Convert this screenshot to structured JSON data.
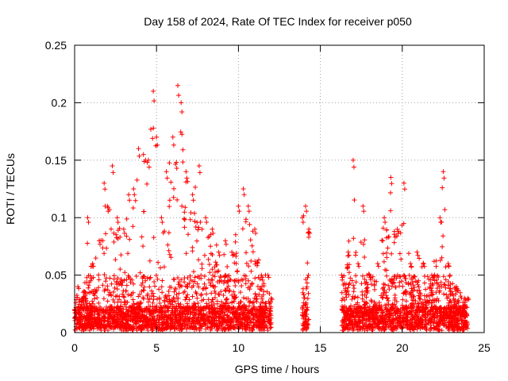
{
  "chart_data": {
    "type": "scatter",
    "title": "Day 158 of 2024, Rate Of TEC Index for receiver p050",
    "xlabel": "GPS time / hours",
    "ylabel": "ROTI / TECUs",
    "xlim": [
      0,
      25
    ],
    "ylim": [
      0,
      0.25
    ],
    "xticks": [
      0,
      5,
      10,
      15,
      20,
      25
    ],
    "xtick_labels": [
      "0",
      "5",
      "10",
      "15",
      "20",
      "25"
    ],
    "yticks": [
      0,
      0.05,
      0.1,
      0.15,
      0.2,
      0.25
    ],
    "ytick_labels": [
      "0",
      "0.05",
      "0.1",
      "0.15",
      "0.2",
      "0.25"
    ],
    "grid": true,
    "marker": "plus",
    "series_color": "#ff0000",
    "segments": [
      {
        "x_start": 0.0,
        "x_end": 12.0
      },
      {
        "x_start": 13.9,
        "x_end": 14.3
      },
      {
        "x_start": 16.3,
        "x_end": 24.0
      }
    ],
    "envelope": [
      [
        0.0,
        0.02
      ],
      [
        0.2,
        0.04
      ],
      [
        0.5,
        0.03
      ],
      [
        0.8,
        0.1
      ],
      [
        1.1,
        0.06
      ],
      [
        1.5,
        0.08
      ],
      [
        1.8,
        0.13
      ],
      [
        2.0,
        0.11
      ],
      [
        2.3,
        0.145
      ],
      [
        2.6,
        0.1
      ],
      [
        3.0,
        0.09
      ],
      [
        3.3,
        0.12
      ],
      [
        3.6,
        0.125
      ],
      [
        3.9,
        0.16
      ],
      [
        4.2,
        0.155
      ],
      [
        4.5,
        0.15
      ],
      [
        4.8,
        0.21
      ],
      [
        5.0,
        0.17
      ],
      [
        5.3,
        0.1
      ],
      [
        5.6,
        0.14
      ],
      [
        6.0,
        0.17
      ],
      [
        6.3,
        0.215
      ],
      [
        6.5,
        0.2
      ],
      [
        6.8,
        0.14
      ],
      [
        7.2,
        0.12
      ],
      [
        7.6,
        0.145
      ],
      [
        8.0,
        0.1
      ],
      [
        8.4,
        0.09
      ],
      [
        8.8,
        0.07
      ],
      [
        9.2,
        0.08
      ],
      [
        9.6,
        0.07
      ],
      [
        10.0,
        0.11
      ],
      [
        10.3,
        0.125
      ],
      [
        10.6,
        0.11
      ],
      [
        11.0,
        0.09
      ],
      [
        11.4,
        0.05
      ],
      [
        11.8,
        0.05
      ],
      [
        12.0,
        0.03
      ],
      [
        13.9,
        0.1
      ],
      [
        14.1,
        0.11
      ],
      [
        14.3,
        0.09
      ],
      [
        16.3,
        0.05
      ],
      [
        16.7,
        0.07
      ],
      [
        17.0,
        0.15
      ],
      [
        17.3,
        0.06
      ],
      [
        17.6,
        0.11
      ],
      [
        18.0,
        0.05
      ],
      [
        18.5,
        0.06
      ],
      [
        18.9,
        0.1
      ],
      [
        19.3,
        0.135
      ],
      [
        19.7,
        0.09
      ],
      [
        20.1,
        0.13
      ],
      [
        20.5,
        0.06
      ],
      [
        20.9,
        0.07
      ],
      [
        21.3,
        0.06
      ],
      [
        21.8,
        0.05
      ],
      [
        22.3,
        0.1
      ],
      [
        22.5,
        0.14
      ],
      [
        22.8,
        0.06
      ],
      [
        23.3,
        0.04
      ],
      [
        23.8,
        0.03
      ],
      [
        24.0,
        0.03
      ]
    ]
  }
}
